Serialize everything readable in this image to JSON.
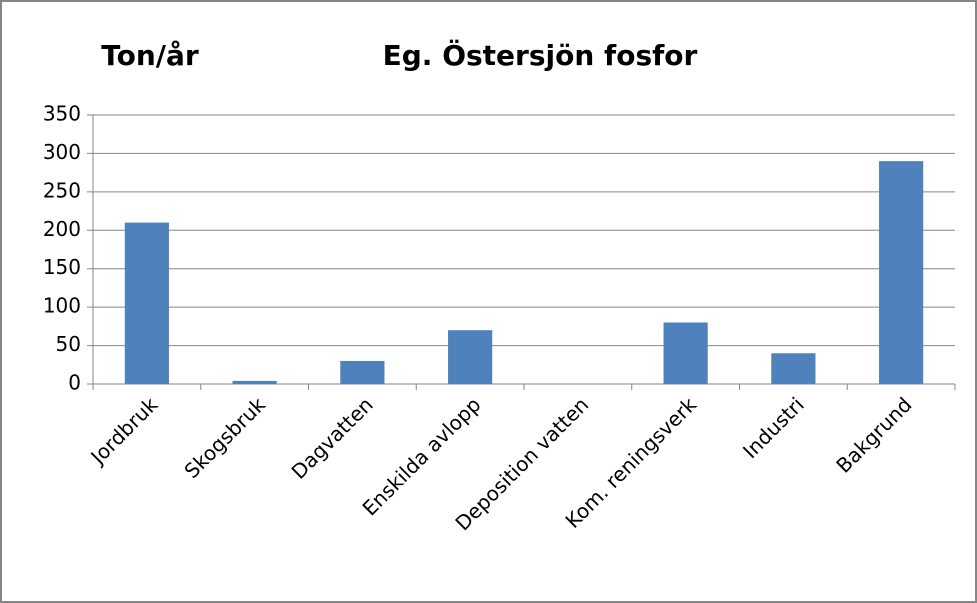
{
  "chart_data": {
    "type": "bar",
    "title": "Eg. Östersjön fosfor",
    "y_label": "Ton/år",
    "categories": [
      "Jordbruk",
      "Skogsbruk",
      "Dagvatten",
      "Enskilda avlopp",
      "Deposition vatten",
      "Kom. reningsverk",
      "Industri",
      "Bakgrund"
    ],
    "values": [
      210,
      4,
      30,
      70,
      0,
      80,
      40,
      290
    ],
    "color": "#4f81bd",
    "ylim": [
      0,
      350
    ],
    "yticks": [
      0,
      50,
      100,
      150,
      200,
      250,
      300,
      350
    ],
    "grid": true
  }
}
